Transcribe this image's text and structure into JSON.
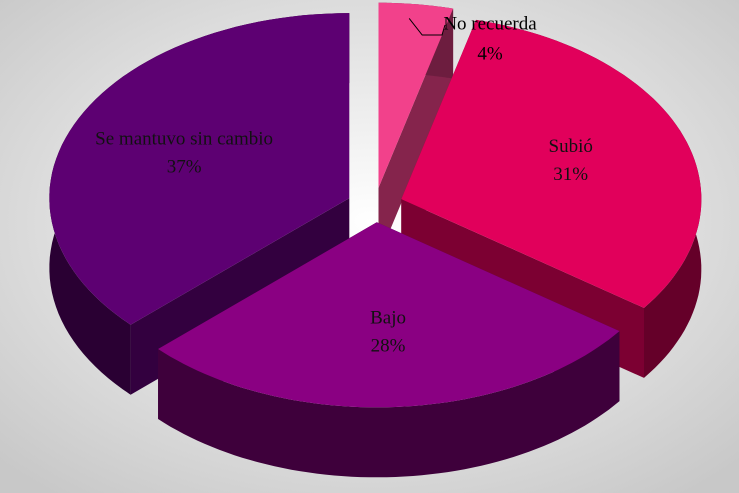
{
  "chart_data": {
    "type": "pie3d",
    "categories": [
      "No recuerda",
      "Subió",
      "Bajo",
      "Se mantuvo sin cambio"
    ],
    "values": [
      4,
      31,
      28,
      37
    ],
    "value_labels": [
      "4%",
      "31%",
      "28%",
      "37%"
    ],
    "colors": [
      "#f2418b",
      "#e1005b",
      "#8a0082",
      "#5d0072"
    ]
  }
}
